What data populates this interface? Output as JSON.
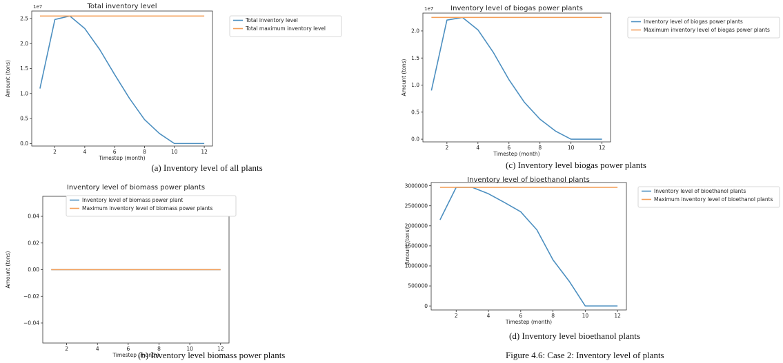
{
  "colors": {
    "series1": "#4c8fc0",
    "series2": "#f4a05a"
  },
  "chart_data": [
    {
      "id": "a",
      "type": "line",
      "title": "Total inventory level",
      "xlabel": "Timestep (month)",
      "ylabel": "Amount (tons)",
      "offset_text": "1e7",
      "scale": 10000000,
      "xlim": [
        0.45,
        12.55
      ],
      "ylim": [
        -0.05,
        2.65
      ],
      "xticks": [
        2,
        4,
        6,
        8,
        10,
        12
      ],
      "xtick_labels": [
        "2",
        "4",
        "6",
        "8",
        "10",
        "12"
      ],
      "yticks": [
        0,
        0.5,
        1.0,
        1.5,
        2.0,
        2.5
      ],
      "ytick_labels": [
        "0.0",
        "0.5",
        "1.0",
        "1.5",
        "2.0",
        "2.5"
      ],
      "legend_position": "outside-right",
      "x": [
        1,
        2,
        3,
        4,
        5,
        6,
        7,
        8,
        9,
        10,
        11,
        12
      ],
      "series": [
        {
          "name": "Total inventory level",
          "color": "#4c8fc0",
          "values": [
            1.1,
            2.48,
            2.55,
            2.3,
            1.88,
            1.38,
            0.9,
            0.48,
            0.2,
            0.0,
            0.0,
            0.0
          ]
        },
        {
          "name": "Total maximum inventory level",
          "color": "#f4a05a",
          "values": [
            2.55,
            2.55,
            2.55,
            2.55,
            2.55,
            2.55,
            2.55,
            2.55,
            2.55,
            2.55,
            2.55,
            2.55
          ]
        }
      ]
    },
    {
      "id": "b",
      "type": "line",
      "title": "Inventory level of biomass power plants",
      "xlabel": "Timestep (month)",
      "ylabel": "Amount (tons)",
      "offset_text": "",
      "scale": 1,
      "xlim": [
        0.45,
        12.55
      ],
      "ylim": [
        -0.055,
        0.055
      ],
      "xticks": [
        2,
        4,
        6,
        8,
        10,
        12
      ],
      "xtick_labels": [
        "2",
        "4",
        "6",
        "8",
        "10",
        "12"
      ],
      "yticks": [
        -0.04,
        -0.02,
        0.0,
        0.02,
        0.04
      ],
      "ytick_labels": [
        "−0.04",
        "−0.02",
        "0.00",
        "0.02",
        "0.04"
      ],
      "legend_position": "upper-center",
      "x": [
        1,
        2,
        3,
        4,
        5,
        6,
        7,
        8,
        9,
        10,
        11,
        12
      ],
      "series": [
        {
          "name": "Inventory level of biomass power plant",
          "color": "#4c8fc0",
          "values": [
            0,
            0,
            0,
            0,
            0,
            0,
            0,
            0,
            0,
            0,
            0,
            0
          ]
        },
        {
          "name": "Maximum inventory level of biomass power plants",
          "color": "#f4a05a",
          "values": [
            0,
            0,
            0,
            0,
            0,
            0,
            0,
            0,
            0,
            0,
            0,
            0
          ]
        }
      ]
    },
    {
      "id": "c",
      "type": "line",
      "title": "Inventory level of biogas power plants",
      "xlabel": "Timestep (month)",
      "ylabel": "Amount (tons)",
      "offset_text": "1e7",
      "scale": 10000000,
      "xlim": [
        0.45,
        12.55
      ],
      "ylim": [
        -0.05,
        2.33
      ],
      "xticks": [
        2,
        4,
        6,
        8,
        10,
        12
      ],
      "xtick_labels": [
        "2",
        "4",
        "6",
        "8",
        "10",
        "12"
      ],
      "yticks": [
        0,
        0.5,
        1.0,
        1.5,
        2.0
      ],
      "ytick_labels": [
        "0.0",
        "0.5",
        "1.0",
        "1.5",
        "2.0"
      ],
      "legend_position": "outside-right",
      "x": [
        1,
        2,
        3,
        4,
        5,
        6,
        7,
        8,
        9,
        10,
        11,
        12
      ],
      "series": [
        {
          "name": "Inventory level of biogas power plants",
          "color": "#4c8fc0",
          "values": [
            0.9,
            2.2,
            2.25,
            2.02,
            1.6,
            1.1,
            0.68,
            0.37,
            0.15,
            0.0,
            0.0,
            0.0
          ]
        },
        {
          "name": "Maximum inventory level of biogas power plants",
          "color": "#f4a05a",
          "values": [
            2.25,
            2.25,
            2.25,
            2.25,
            2.25,
            2.25,
            2.25,
            2.25,
            2.25,
            2.25,
            2.25,
            2.25
          ]
        }
      ]
    },
    {
      "id": "d",
      "type": "line",
      "title": "Inventory level of bioethanol plants",
      "xlabel": "Timestep (month)",
      "ylabel": "Amount (tons)",
      "offset_text": "",
      "scale": 1,
      "xlim": [
        0.45,
        12.55
      ],
      "ylim": [
        -100000,
        3080000
      ],
      "xticks": [
        2,
        4,
        6,
        8,
        10,
        12
      ],
      "xtick_labels": [
        "2",
        "4",
        "6",
        "8",
        "10",
        "12"
      ],
      "yticks": [
        0,
        500000,
        1000000,
        1500000,
        2000000,
        2500000,
        3000000
      ],
      "ytick_labels": [
        "0",
        "500000",
        "1000000",
        "1500000",
        "2000000",
        "2500000",
        "3000000"
      ],
      "legend_position": "outside-right",
      "x": [
        1,
        2,
        3,
        4,
        5,
        6,
        7,
        8,
        9,
        10,
        11,
        12
      ],
      "series": [
        {
          "name": "Inventory level of bioethanol plants",
          "color": "#4c8fc0",
          "values": [
            2150000,
            2960000,
            2960000,
            2800000,
            2580000,
            2350000,
            1900000,
            1150000,
            620000,
            0,
            0,
            0
          ]
        },
        {
          "name": "Maximum inventory level of bioethanol plants",
          "color": "#f4a05a",
          "values": [
            2960000,
            2960000,
            2960000,
            2960000,
            2960000,
            2960000,
            2960000,
            2960000,
            2960000,
            2960000,
            2960000,
            2960000
          ]
        }
      ]
    }
  ],
  "captions": {
    "a": "(a) Inventory level of all plants",
    "b": "(b) Inventory level biomass power plants",
    "c": "(c) Inventory level biogas power plants",
    "d": "(d) Inventory level bioethanol plants",
    "figure": "Figure 4.6: Case 2: Inventory level of plants"
  }
}
